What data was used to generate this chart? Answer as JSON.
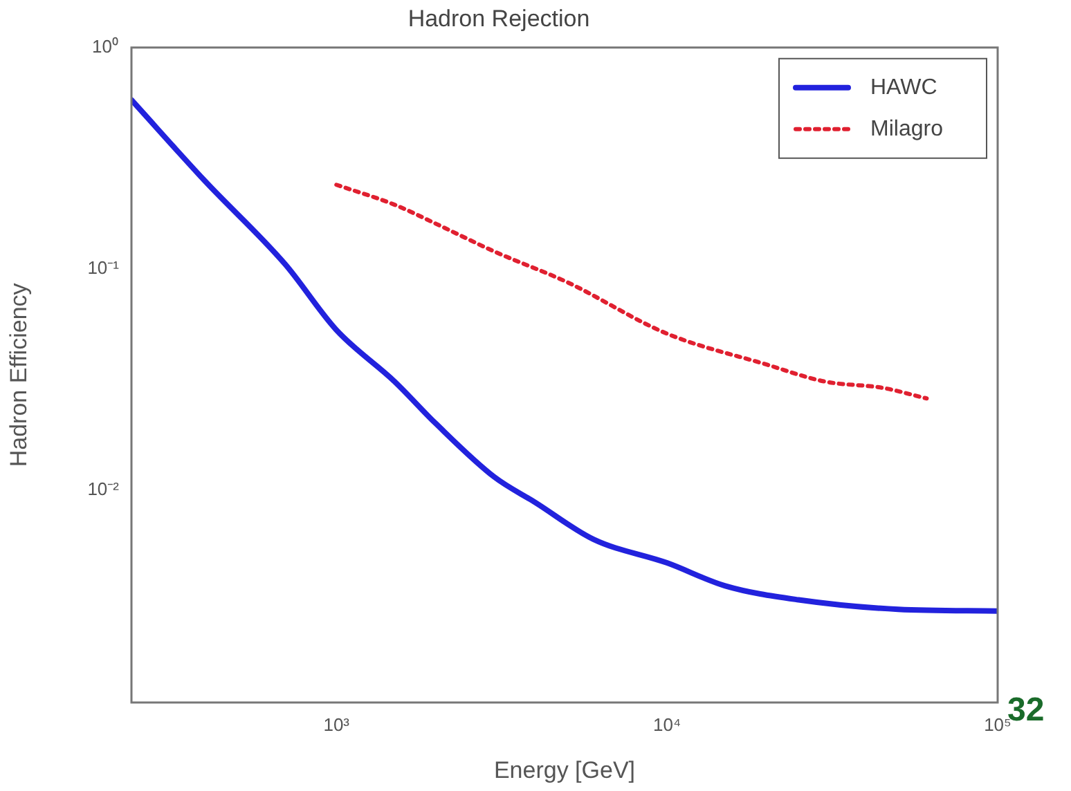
{
  "chart_data": {
    "type": "line",
    "title": "Hadron Rejection",
    "xlabel": "Energy [GeV]",
    "ylabel": "Hadron Efficiency",
    "log": "xy",
    "grid": false,
    "legend": "top right",
    "xlim": [
      240,
      100000
    ],
    "ylim": [
      0.0011,
      1
    ],
    "xticks": [
      {
        "value": 1000,
        "label": "10³"
      },
      {
        "value": 10000,
        "label": "10⁴"
      },
      {
        "value": 100000,
        "label": "10⁵"
      }
    ],
    "yticks": [
      {
        "value": 0.01,
        "label": "10⁻²"
      },
      {
        "value": 0.1,
        "label": "10⁻¹"
      },
      {
        "value": 1,
        "label": "10⁰"
      }
    ],
    "annotations": [
      "32"
    ],
    "series": [
      {
        "name": "HAWC",
        "color": "#2222dd",
        "line_style": "solid",
        "x": [
          240,
          400,
          700,
          1000,
          1500,
          2000,
          3000,
          4000,
          6000,
          10000,
          15000,
          25000,
          50000,
          100000
        ],
        "values": [
          0.58,
          0.25,
          0.105,
          0.053,
          0.031,
          0.02,
          0.0115,
          0.0088,
          0.006,
          0.0047,
          0.0037,
          0.0032,
          0.0029,
          0.00285
        ]
      },
      {
        "name": "Milagro",
        "color": "#e02030",
        "line_style": "dotted",
        "x": [
          1000,
          1500,
          2000,
          3000,
          5000,
          10000,
          20000,
          30000,
          45000,
          61000
        ],
        "values": [
          0.24,
          0.195,
          0.16,
          0.12,
          0.087,
          0.051,
          0.037,
          0.031,
          0.029,
          0.026
        ]
      }
    ]
  }
}
